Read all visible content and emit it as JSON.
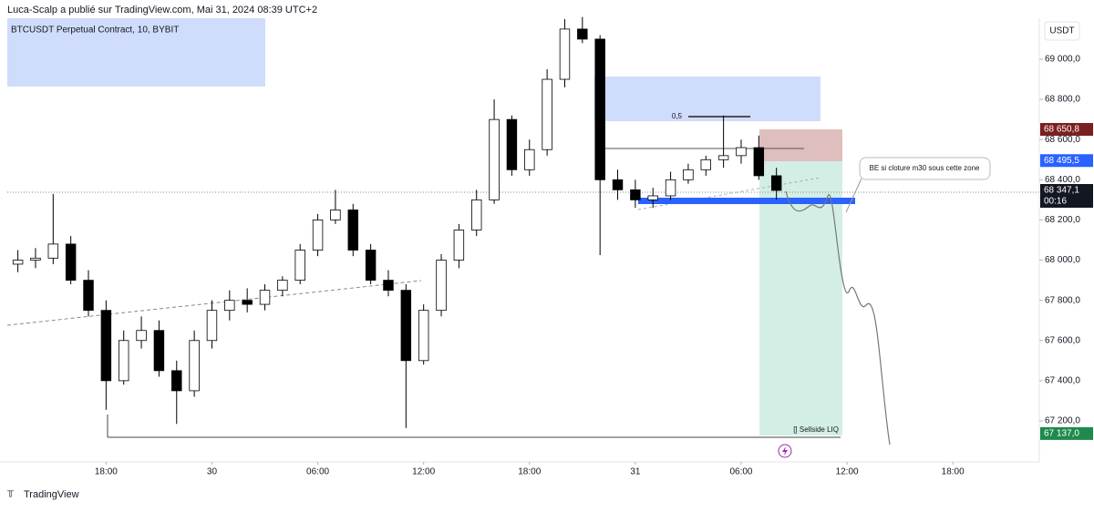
{
  "header": "Luca-Scalp a publié sur TradingView.com, Mai 31, 2024 08:39 UTC+2",
  "footer": "TradingView",
  "chart_data": {
    "type": "candlestick",
    "title": "BTCUSDT Perpetual Contract, 10, BYBIT",
    "currency": "USDT",
    "up_color": "#ffffff",
    "down_color": "#000000",
    "wick_color": "#000000",
    "xlim": [
      -5.6,
      52.9
    ],
    "ylim": [
      67005,
      69204
    ],
    "xticks": [
      {
        "value": 0,
        "label": "18:00"
      },
      {
        "value": 6,
        "label": "30"
      },
      {
        "value": 12,
        "label": "06:00"
      },
      {
        "value": 18,
        "label": "12:00"
      },
      {
        "value": 24,
        "label": "18:00"
      },
      {
        "value": 30,
        "label": "31"
      },
      {
        "value": 36,
        "label": "06:00"
      },
      {
        "value": 42,
        "label": "12:00"
      },
      {
        "value": 48,
        "label": "18:00"
      }
    ],
    "yticks": [
      {
        "value": 67200,
        "label": "67 200,0"
      },
      {
        "value": 67400,
        "label": "67 400,0"
      },
      {
        "value": 67600,
        "label": "67 600,0"
      },
      {
        "value": 67800,
        "label": "67 800,0"
      },
      {
        "value": 68000,
        "label": "68 000,0"
      },
      {
        "value": 68200,
        "label": "68 200,0"
      },
      {
        "value": 68400,
        "label": "68 400,0"
      },
      {
        "value": 68600,
        "label": "68 600,0"
      },
      {
        "value": 68800,
        "label": "68 800,0"
      },
      {
        "value": 69000,
        "label": "69 000,0"
      }
    ],
    "x": [
      -5,
      -4,
      -3,
      -2,
      -1,
      0,
      1,
      2,
      3,
      4,
      5,
      6,
      7,
      8,
      9,
      10,
      11,
      12,
      13,
      14,
      15,
      16,
      17,
      18,
      19,
      20,
      21,
      22,
      23,
      24,
      25,
      26,
      27,
      28,
      29,
      30,
      31,
      32,
      33,
      34,
      35,
      36,
      37,
      38
    ],
    "open": [
      67980,
      68000,
      68010,
      68080,
      67900,
      67750,
      67400,
      67600,
      67650,
      67450,
      67350,
      67600,
      67750,
      67800,
      67780,
      67850,
      67900,
      68050,
      68200,
      68250,
      68050,
      67900,
      67850,
      67500,
      67750,
      68000,
      68150,
      68300,
      68700,
      68450,
      68550,
      68900,
      69150,
      69100,
      68400,
      68350,
      68300,
      68320,
      68400,
      68450,
      68500,
      68520,
      68560,
      68420
    ],
    "high": [
      68050,
      68060,
      68330,
      68120,
      67950,
      67800,
      67650,
      67720,
      67700,
      67500,
      67650,
      67800,
      67850,
      67860,
      67880,
      67920,
      68080,
      68230,
      68350,
      68280,
      68080,
      67950,
      67880,
      67780,
      68030,
      68180,
      68350,
      68800,
      68720,
      68600,
      68950,
      69200,
      69210,
      69120,
      68450,
      68400,
      68360,
      68440,
      68480,
      68520,
      68720,
      68600,
      68620,
      68460
    ],
    "low": [
      67940,
      67960,
      67980,
      67880,
      67720,
      67255,
      67380,
      67560,
      67420,
      67185,
      67320,
      67560,
      67700,
      67740,
      67750,
      67820,
      67880,
      68020,
      68180,
      68020,
      67880,
      67820,
      67165,
      67480,
      67720,
      67960,
      68120,
      68280,
      68420,
      68420,
      68520,
      68860,
      69080,
      68025,
      68300,
      68260,
      68260,
      68300,
      68380,
      68420,
      68460,
      68480,
      68400,
      68300
    ],
    "close": [
      68000,
      68010,
      68080,
      67900,
      67750,
      67400,
      67600,
      67650,
      67450,
      67350,
      67600,
      67750,
      67800,
      67780,
      67850,
      67900,
      68050,
      68200,
      68250,
      68050,
      67900,
      67850,
      67500,
      67750,
      68000,
      68150,
      68300,
      68700,
      68450,
      68550,
      68900,
      69150,
      69100,
      68400,
      68350,
      68300,
      68320,
      68400,
      68450,
      68500,
      68520,
      68560,
      68420,
      68347
    ],
    "price_labels": [
      {
        "value": 68650.8,
        "label": "68 650,8",
        "color": "#7b1f1f"
      },
      {
        "value": 68495.5,
        "label": "68 495,5",
        "color": "#2962ff"
      },
      {
        "value": 68347.1,
        "label": "68 347,1",
        "color": "#131722"
      },
      {
        "value": 67137.0,
        "label": "67 137,0",
        "color": "#1e8a4c"
      }
    ],
    "countdown": "00:16",
    "annotations": [
      "0,5",
      "BE si cloture m30 sous cette zone",
      "[] Sellside LIQ"
    ]
  }
}
